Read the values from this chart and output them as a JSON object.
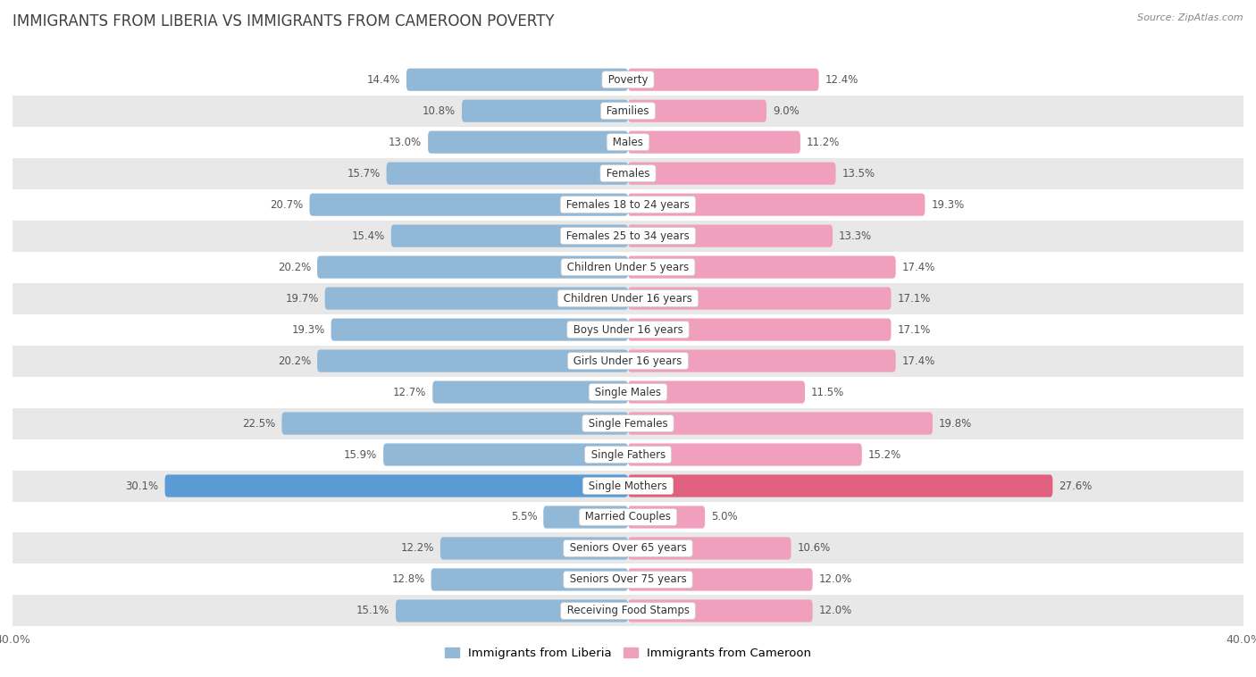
{
  "title": "IMMIGRANTS FROM LIBERIA VS IMMIGRANTS FROM CAMEROON POVERTY",
  "source": "Source: ZipAtlas.com",
  "categories": [
    "Poverty",
    "Families",
    "Males",
    "Females",
    "Females 18 to 24 years",
    "Females 25 to 34 years",
    "Children Under 5 years",
    "Children Under 16 years",
    "Boys Under 16 years",
    "Girls Under 16 years",
    "Single Males",
    "Single Females",
    "Single Fathers",
    "Single Mothers",
    "Married Couples",
    "Seniors Over 65 years",
    "Seniors Over 75 years",
    "Receiving Food Stamps"
  ],
  "liberia_values": [
    14.4,
    10.8,
    13.0,
    15.7,
    20.7,
    15.4,
    20.2,
    19.7,
    19.3,
    20.2,
    12.7,
    22.5,
    15.9,
    30.1,
    5.5,
    12.2,
    12.8,
    15.1
  ],
  "cameroon_values": [
    12.4,
    9.0,
    11.2,
    13.5,
    19.3,
    13.3,
    17.4,
    17.1,
    17.1,
    17.4,
    11.5,
    19.8,
    15.2,
    27.6,
    5.0,
    10.6,
    12.0,
    12.0
  ],
  "liberia_color": "#92b8d8",
  "cameroon_color": "#f0a0bc",
  "liberia_highlight_color": "#5b9bd5",
  "cameroon_highlight_color": "#e06080",
  "background_color": "#ffffff",
  "row_color_light": "#ffffff",
  "row_color_dark": "#e8e8e8",
  "xlim": 40.0,
  "legend_liberia": "Immigrants from Liberia",
  "legend_cameroon": "Immigrants from Cameroon",
  "title_color": "#404040",
  "source_color": "#888888",
  "label_color": "#555555",
  "value_color": "#555555"
}
